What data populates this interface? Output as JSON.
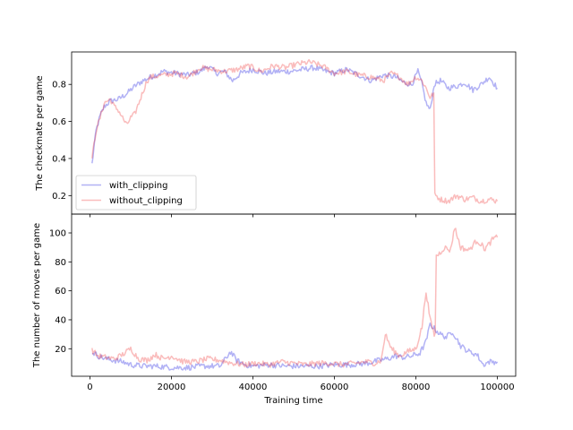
{
  "chart_data": [
    {
      "type": "line",
      "title": "",
      "xlabel": "",
      "ylabel": "The checkmate per game",
      "xlim": [
        -4500,
        104500
      ],
      "ylim": [
        0.1,
        0.975
      ],
      "x_ticks": [
        0,
        20000,
        40000,
        60000,
        80000,
        100000
      ],
      "y_ticks": [
        0.2,
        0.4,
        0.6,
        0.8
      ],
      "y_tick_labels": [
        "0.2",
        "0.4",
        "0.6",
        "0.8"
      ],
      "grid": false,
      "legend": {
        "placement": "lower-left",
        "entries": [
          "with_clipping",
          "without_clipping"
        ]
      },
      "series": [
        {
          "name": "with_clipping",
          "color": "#0000dd",
          "x": [
            500,
            1500,
            2500,
            3500,
            5000,
            7000,
            9000,
            11000,
            13000,
            15000,
            18000,
            21000,
            24000,
            27000,
            29000,
            31000,
            33000,
            35000,
            37000,
            40000,
            43000,
            46000,
            49000,
            52000,
            55000,
            58000,
            60000,
            63000,
            66000,
            69000,
            72000,
            75000,
            77000,
            79000,
            80500,
            81500,
            82500,
            83500,
            84500,
            86000,
            88000,
            90000,
            92000,
            94000,
            96000,
            98000,
            100000
          ],
          "values": [
            0.37,
            0.55,
            0.63,
            0.68,
            0.71,
            0.72,
            0.75,
            0.79,
            0.82,
            0.84,
            0.87,
            0.86,
            0.85,
            0.87,
            0.9,
            0.86,
            0.87,
            0.82,
            0.86,
            0.88,
            0.86,
            0.87,
            0.87,
            0.88,
            0.89,
            0.87,
            0.86,
            0.88,
            0.85,
            0.82,
            0.85,
            0.84,
            0.81,
            0.8,
            0.87,
            0.8,
            0.7,
            0.66,
            0.8,
            0.82,
            0.78,
            0.79,
            0.81,
            0.77,
            0.8,
            0.84,
            0.78
          ]
        },
        {
          "name": "without_clipping",
          "color": "#ee2222",
          "x": [
            500,
            1500,
            2500,
            3500,
            5000,
            6000,
            7000,
            8000,
            9000,
            10000,
            11000,
            12000,
            13000,
            14000,
            15000,
            18000,
            21000,
            24000,
            27000,
            30000,
            33000,
            36000,
            39000,
            42000,
            45000,
            48000,
            51000,
            54000,
            57000,
            60000,
            63000,
            66000,
            69000,
            72000,
            74000,
            76000,
            78000,
            80000,
            81500,
            82500,
            83500,
            84400,
            84900,
            86000,
            88000,
            90000,
            92000,
            94000,
            96000,
            98000,
            100000
          ],
          "values": [
            0.4,
            0.55,
            0.62,
            0.7,
            0.72,
            0.68,
            0.66,
            0.62,
            0.58,
            0.62,
            0.64,
            0.7,
            0.76,
            0.82,
            0.84,
            0.85,
            0.86,
            0.84,
            0.89,
            0.88,
            0.87,
            0.88,
            0.9,
            0.87,
            0.9,
            0.89,
            0.91,
            0.92,
            0.9,
            0.86,
            0.87,
            0.85,
            0.84,
            0.82,
            0.86,
            0.84,
            0.8,
            0.84,
            0.82,
            0.78,
            0.73,
            0.75,
            0.2,
            0.18,
            0.17,
            0.2,
            0.18,
            0.19,
            0.17,
            0.18,
            0.17
          ]
        }
      ]
    },
    {
      "type": "line",
      "title": "",
      "xlabel": "Training time",
      "ylabel": "The number of moves per game",
      "xlim": [
        -4500,
        104500
      ],
      "ylim": [
        1,
        113
      ],
      "x_ticks": [
        0,
        20000,
        40000,
        60000,
        80000,
        100000
      ],
      "x_tick_labels": [
        "0",
        "20000",
        "40000",
        "60000",
        "80000",
        "100000"
      ],
      "y_ticks": [
        20,
        40,
        60,
        80,
        100
      ],
      "y_tick_labels": [
        "20",
        "40",
        "60",
        "80",
        "100"
      ],
      "grid": false,
      "series": [
        {
          "name": "with_clipping",
          "color": "#0000dd",
          "x": [
            500,
            2000,
            4000,
            6000,
            8000,
            10000,
            13000,
            16000,
            20000,
            24000,
            28000,
            32000,
            34500,
            36000,
            38000,
            40000,
            44000,
            48000,
            52000,
            56000,
            60000,
            64000,
            68000,
            71000,
            73000,
            75000,
            77000,
            79000,
            81000,
            82500,
            83500,
            84500,
            86000,
            87500,
            89000,
            91000,
            93000,
            95000,
            96500,
            98000,
            100000
          ],
          "values": [
            18,
            15,
            13,
            12,
            11,
            9,
            8,
            8,
            7,
            7,
            8,
            8,
            18,
            12,
            9,
            8,
            9,
            8,
            8,
            8,
            9,
            9,
            10,
            12,
            13,
            15,
            14,
            15,
            17,
            25,
            37,
            34,
            30,
            28,
            32,
            22,
            18,
            16,
            9,
            11,
            11
          ]
        },
        {
          "name": "without_clipping",
          "color": "#ee2222",
          "x": [
            500,
            2000,
            4000,
            6000,
            8000,
            10000,
            12000,
            14000,
            16000,
            18000,
            20000,
            23000,
            26000,
            29000,
            32000,
            35000,
            38000,
            41000,
            44000,
            47000,
            50000,
            53000,
            56000,
            59000,
            62000,
            65000,
            68000,
            70000,
            71500,
            72500,
            74000,
            76000,
            78000,
            80000,
            81500,
            82500,
            83500,
            84500,
            85500,
            87000,
            88500,
            89500,
            91000,
            93000,
            95000,
            97000,
            99000,
            100000
          ],
          "values": [
            19,
            15,
            14,
            13,
            16,
            20,
            13,
            12,
            16,
            13,
            15,
            11,
            11,
            13,
            12,
            10,
            9,
            10,
            9,
            11,
            10,
            9,
            10,
            10,
            9,
            10,
            11,
            10,
            12,
            30,
            20,
            15,
            18,
            20,
            35,
            60,
            40,
            30,
            85,
            90,
            88,
            104,
            90,
            88,
            95,
            89,
            96,
            97
          ]
        }
      ]
    }
  ]
}
